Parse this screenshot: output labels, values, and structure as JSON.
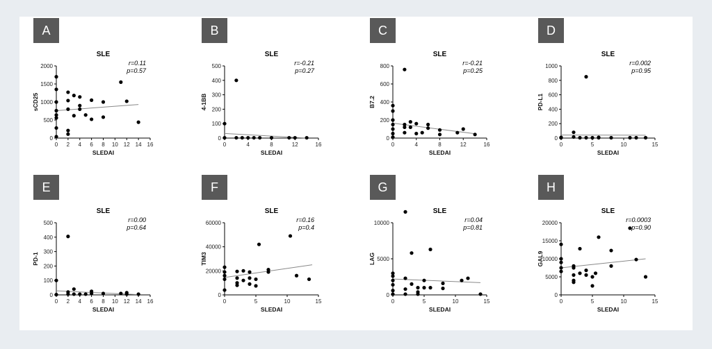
{
  "colors": {
    "page_bg": "#e9edf1",
    "figure_bg": "#ffffff",
    "label_bg": "#595959",
    "label_text": "#ffffff",
    "point": "#000000",
    "trend_line": "#888888"
  },
  "chart_data": [
    {
      "label": "A",
      "type": "scatter",
      "title": "SLE",
      "xlabel": "SLEDAI",
      "ylabel": "sCD25",
      "xlim": [
        0,
        16
      ],
      "ylim": [
        0,
        2000
      ],
      "xticks": [
        "0",
        "2",
        "4",
        "6",
        "8",
        "10",
        "12",
        "14",
        "16"
      ],
      "yticks": [
        "0",
        "500",
        "1000",
        "1500",
        "2000"
      ],
      "stats": [
        "r=0.11",
        "p=0.57"
      ],
      "trend": [
        [
          0,
          760
        ],
        [
          14,
          930
        ]
      ],
      "points": [
        [
          0,
          1700
        ],
        [
          0,
          1350
        ],
        [
          0,
          1000
        ],
        [
          0,
          760
        ],
        [
          0,
          640
        ],
        [
          0,
          560
        ],
        [
          0,
          280
        ],
        [
          0,
          40
        ],
        [
          2,
          1270
        ],
        [
          2,
          1040
        ],
        [
          2,
          800
        ],
        [
          2,
          210
        ],
        [
          2,
          110
        ],
        [
          3,
          1180
        ],
        [
          3,
          620
        ],
        [
          4,
          1140
        ],
        [
          4,
          900
        ],
        [
          4,
          800
        ],
        [
          5,
          640
        ],
        [
          6,
          1050
        ],
        [
          6,
          520
        ],
        [
          8,
          1000
        ],
        [
          8,
          580
        ],
        [
          11,
          1550
        ],
        [
          12,
          1020
        ],
        [
          14,
          440
        ]
      ]
    },
    {
      "label": "B",
      "type": "scatter",
      "title": "SLE",
      "xlabel": "SLEDAI",
      "ylabel": "4-1BB",
      "xlim": [
        0,
        16
      ],
      "ylim": [
        0,
        500
      ],
      "xticks": [
        "0",
        "4",
        "8",
        "12",
        "16"
      ],
      "yticks": [
        "0",
        "100",
        "200",
        "300",
        "400",
        "500"
      ],
      "stats": [
        "r=-0.21",
        "p=0.27"
      ],
      "trend": [
        [
          0,
          32
        ],
        [
          14,
          0
        ]
      ],
      "points": [
        [
          0,
          100
        ],
        [
          0,
          2
        ],
        [
          2,
          400
        ],
        [
          2,
          2
        ],
        [
          3,
          2
        ],
        [
          4,
          2
        ],
        [
          5,
          2
        ],
        [
          6,
          2
        ],
        [
          8,
          2
        ],
        [
          11,
          2
        ],
        [
          12,
          2
        ],
        [
          14,
          2
        ]
      ]
    },
    {
      "label": "C",
      "type": "scatter",
      "title": "SLE",
      "xlabel": "SLEDAI",
      "ylabel": "B7.2",
      "xlim": [
        0,
        16
      ],
      "ylim": [
        0,
        800
      ],
      "xticks": [
        "0",
        "4",
        "8",
        "12",
        "16"
      ],
      "yticks": [
        "0",
        "200",
        "400",
        "600",
        "800"
      ],
      "stats": [
        "r=-0.21",
        "p=0.25"
      ],
      "trend": [
        [
          0,
          165
        ],
        [
          14,
          48
        ]
      ],
      "points": [
        [
          0,
          360
        ],
        [
          0,
          300
        ],
        [
          0,
          200
        ],
        [
          0,
          150
        ],
        [
          0,
          100
        ],
        [
          0,
          50
        ],
        [
          0,
          10
        ],
        [
          2,
          760
        ],
        [
          2,
          150
        ],
        [
          2,
          120
        ],
        [
          2,
          60
        ],
        [
          3,
          180
        ],
        [
          3,
          120
        ],
        [
          4,
          160
        ],
        [
          4,
          50
        ],
        [
          5,
          60
        ],
        [
          6,
          150
        ],
        [
          6,
          110
        ],
        [
          8,
          90
        ],
        [
          8,
          40
        ],
        [
          11,
          60
        ],
        [
          12,
          100
        ],
        [
          14,
          40
        ]
      ]
    },
    {
      "label": "D",
      "type": "scatter",
      "title": "SLE",
      "xlabel": "SLEDAI",
      "ylabel": "PD-L1",
      "xlim": [
        0,
        15
      ],
      "ylim": [
        0,
        1000
      ],
      "xticks": [
        "0",
        "5",
        "10",
        "15"
      ],
      "yticks": [
        "0",
        "200",
        "400",
        "600",
        "800",
        "1000"
      ],
      "stats": [
        "r=0.002",
        "p=0.95"
      ],
      "trend": [
        [
          0,
          42
        ],
        [
          13.5,
          40
        ]
      ],
      "points": [
        [
          0,
          10
        ],
        [
          0,
          5
        ],
        [
          2,
          80
        ],
        [
          2,
          15
        ],
        [
          3,
          5
        ],
        [
          4,
          850
        ],
        [
          4,
          5
        ],
        [
          5,
          5
        ],
        [
          6,
          10
        ],
        [
          6,
          5
        ],
        [
          8,
          5
        ],
        [
          11,
          5
        ],
        [
          12,
          5
        ],
        [
          13.5,
          5
        ]
      ]
    },
    {
      "label": "E",
      "type": "scatter",
      "title": "SLE",
      "xlabel": "SLEDAI",
      "ylabel": "PD-1",
      "xlim": [
        0,
        16
      ],
      "ylim": [
        0,
        500
      ],
      "xticks": [
        "0",
        "2",
        "4",
        "6",
        "8",
        "10",
        "12",
        "14",
        "16"
      ],
      "yticks": [
        "0",
        "100",
        "200",
        "300",
        "400",
        "500"
      ],
      "stats": [
        "r=0.00",
        "p=0.64"
      ],
      "trend": [
        [
          0,
          28
        ],
        [
          14,
          2
        ]
      ],
      "points": [
        [
          0,
          100
        ],
        [
          0,
          2
        ],
        [
          2,
          405
        ],
        [
          2,
          20
        ],
        [
          2,
          5
        ],
        [
          3,
          40
        ],
        [
          3,
          5
        ],
        [
          4,
          5
        ],
        [
          5,
          5
        ],
        [
          6,
          25
        ],
        [
          6,
          10
        ],
        [
          8,
          10
        ],
        [
          11,
          10
        ],
        [
          12,
          15
        ],
        [
          12,
          5
        ],
        [
          14,
          5
        ]
      ]
    },
    {
      "label": "F",
      "type": "scatter",
      "title": "SLE",
      "xlabel": "SLEDAI",
      "ylabel": "TIM3",
      "xlim": [
        0,
        15
      ],
      "ylim": [
        0,
        60000
      ],
      "xticks": [
        "0",
        "5",
        "10",
        "15"
      ],
      "yticks": [
        "0",
        "20000",
        "40000",
        "60000"
      ],
      "stats": [
        "r=0.16",
        "p=0.4"
      ],
      "trend": [
        [
          0,
          14500
        ],
        [
          14,
          25000
        ]
      ],
      "points": [
        [
          0,
          23000
        ],
        [
          0,
          19000
        ],
        [
          0,
          16000
        ],
        [
          0,
          13000
        ],
        [
          0,
          4000
        ],
        [
          2,
          19500
        ],
        [
          2,
          14000
        ],
        [
          2,
          10000
        ],
        [
          2,
          8000
        ],
        [
          3,
          20000
        ],
        [
          3,
          12000
        ],
        [
          4,
          19000
        ],
        [
          4,
          14000
        ],
        [
          4,
          9000
        ],
        [
          5,
          13000
        ],
        [
          5,
          7500
        ],
        [
          5.5,
          42000
        ],
        [
          7,
          21000
        ],
        [
          7,
          19000
        ],
        [
          10.5,
          49000
        ],
        [
          11.5,
          16000
        ],
        [
          13.5,
          13000
        ]
      ]
    },
    {
      "label": "G",
      "type": "scatter",
      "title": "SLE",
      "xlabel": "SLEDAI",
      "ylabel": "LAG",
      "xlim": [
        0,
        15
      ],
      "ylim": [
        0,
        10000
      ],
      "xticks": [
        "0",
        "5",
        "10",
        "15"
      ],
      "yticks": [
        "0",
        "5000",
        "10000"
      ],
      "stats": [
        "r=0.04",
        "p=0.81"
      ],
      "trend": [
        [
          0,
          2200
        ],
        [
          14,
          1700
        ]
      ],
      "points": [
        [
          0,
          3000
        ],
        [
          0,
          2600
        ],
        [
          0,
          2000
        ],
        [
          0,
          1400
        ],
        [
          0,
          600
        ],
        [
          0,
          100
        ],
        [
          2,
          11500
        ],
        [
          2,
          2300
        ],
        [
          2,
          800
        ],
        [
          2,
          100
        ],
        [
          3,
          5800
        ],
        [
          3,
          1500
        ],
        [
          4,
          1000
        ],
        [
          4,
          400
        ],
        [
          4,
          100
        ],
        [
          5,
          2000
        ],
        [
          5,
          1000
        ],
        [
          6,
          6300
        ],
        [
          6,
          1000
        ],
        [
          8,
          1600
        ],
        [
          8,
          900
        ],
        [
          11,
          2000
        ],
        [
          12,
          2300
        ],
        [
          14,
          100
        ]
      ]
    },
    {
      "label": "H",
      "type": "scatter",
      "title": "SLE",
      "xlabel": "SLEDAI",
      "ylabel": "GAL9",
      "xlim": [
        0,
        15
      ],
      "ylim": [
        0,
        20000
      ],
      "xticks": [
        "0",
        "5",
        "10",
        "15"
      ],
      "yticks": [
        "0",
        "5000",
        "10000",
        "15000",
        "20000"
      ],
      "stats": [
        "r=0.0003",
        "p=0.90"
      ],
      "trend": [
        [
          0,
          7500
        ],
        [
          13.5,
          10000
        ]
      ],
      "points": [
        [
          0,
          14000
        ],
        [
          0,
          10000
        ],
        [
          0,
          9000
        ],
        [
          0,
          7500
        ],
        [
          0,
          6500
        ],
        [
          2,
          8000
        ],
        [
          2,
          7500
        ],
        [
          2,
          5500
        ],
        [
          2,
          4000
        ],
        [
          2,
          3500
        ],
        [
          3,
          12800
        ],
        [
          3,
          6000
        ],
        [
          4,
          6800
        ],
        [
          4,
          5500
        ],
        [
          5,
          5000
        ],
        [
          5,
          2500
        ],
        [
          5.5,
          6000
        ],
        [
          6,
          16000
        ],
        [
          8,
          12300
        ],
        [
          8,
          8000
        ],
        [
          11,
          18500
        ],
        [
          12,
          9800
        ],
        [
          13.5,
          5000
        ]
      ]
    }
  ]
}
